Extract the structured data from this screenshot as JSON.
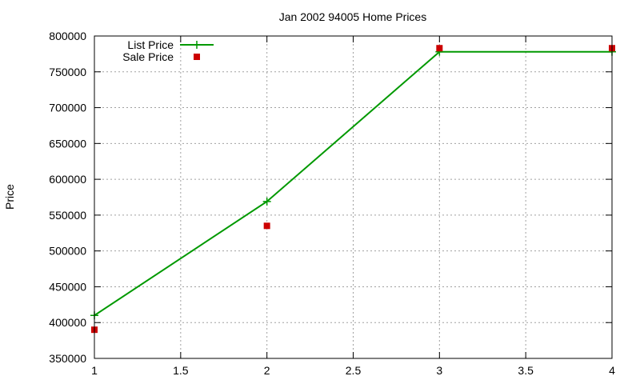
{
  "chart_data": {
    "type": "line",
    "title": "Jan 2002 94005 Home Prices",
    "xlabel": "",
    "ylabel": "Price",
    "xlim": [
      1,
      4
    ],
    "ylim": [
      350000,
      800000
    ],
    "x_ticks": [
      "1",
      "1.5",
      "2",
      "2.5",
      "3",
      "3.5",
      "4"
    ],
    "y_ticks": [
      "350000",
      "400000",
      "450000",
      "500000",
      "550000",
      "600000",
      "650000",
      "700000",
      "750000",
      "800000"
    ],
    "grid": true,
    "legend_position": "top-left",
    "series": [
      {
        "name": "List Price",
        "style": "linespoints",
        "marker": "plus",
        "color": "#009900",
        "x": [
          1,
          2,
          3,
          4
        ],
        "y": [
          410000,
          569000,
          778000,
          778000
        ]
      },
      {
        "name": "Sale Price",
        "style": "points",
        "marker": "square",
        "color": "#cc0000",
        "x": [
          1,
          2,
          3,
          4
        ],
        "y": [
          390000,
          535000,
          783000,
          783000
        ]
      }
    ]
  }
}
